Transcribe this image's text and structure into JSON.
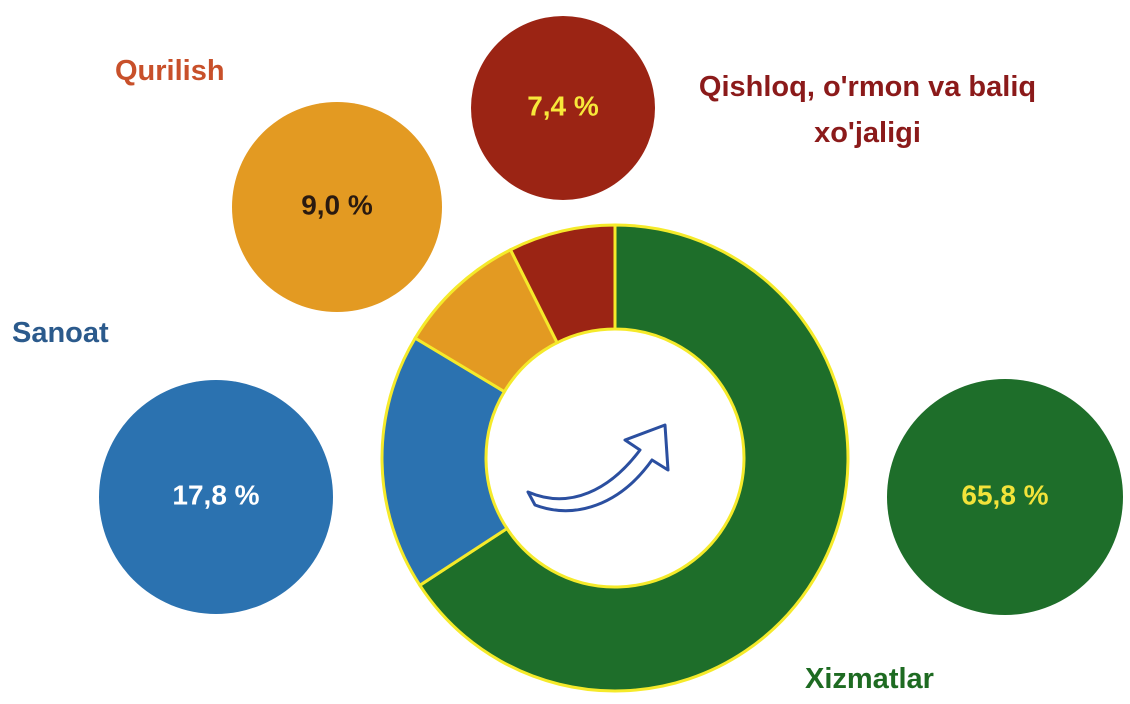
{
  "chart_data": {
    "type": "pie",
    "donut": true,
    "categories": [
      "Xizmatlar",
      "Sanoat",
      "Qurilish",
      "Qishloq, o'rmon va baliq xo'jaligi"
    ],
    "values": [
      65.8,
      17.8,
      9.0,
      7.4
    ],
    "value_labels": [
      "65,8 %",
      "17,8 %",
      "9,0 %",
      "7,4 %"
    ],
    "colors": [
      "#1e6e2a",
      "#2b72b0",
      "#e39a22",
      "#9b2414"
    ]
  }
}
